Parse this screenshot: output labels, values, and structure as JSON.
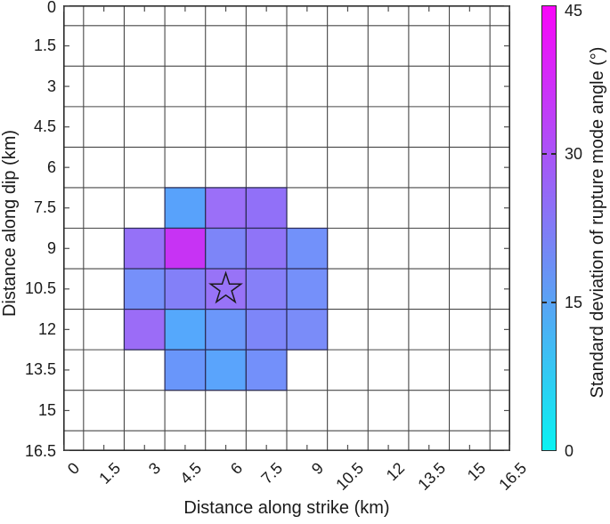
{
  "figure": {
    "background": "#ffffff"
  },
  "chart_data": {
    "type": "heatmap",
    "title": "",
    "xlabel": "Distance along strike (km)",
    "ylabel": "Distance along dip (km)",
    "x_ticks": [
      "0",
      "1.5",
      "3",
      "4.5",
      "6",
      "7.5",
      "9",
      "10.5",
      "12",
      "13.5",
      "15",
      "16.5"
    ],
    "y_ticks": [
      "0",
      "1.5",
      "3",
      "4.5",
      "6",
      "7.5",
      "9",
      "10.5",
      "12",
      "13.5",
      "15",
      "16.5"
    ],
    "x_range": [
      0,
      16.5
    ],
    "y_range": [
      0,
      16.5
    ],
    "y_axis_direction": "reversed (0 at top)",
    "cell_size_km": 1.5,
    "grid": "on",
    "grid_line_color": "#474747",
    "axis_box_color": "#2a2a2a",
    "cell_edge_color": "#2b2b55",
    "colorbar": {
      "label": "Standard deviation of rupture mode angle (°)",
      "tick_labels": [
        "0",
        "15",
        "30",
        "45"
      ],
      "range": [
        0,
        45
      ],
      "colormap": "cool",
      "bottom_color": "#0af2f2",
      "top_color": "#f905f9",
      "position": "right"
    },
    "star_marker": {
      "x": 6,
      "y": 10.5,
      "shape": "pentagram-outline",
      "outline_color": "#1a1a1a"
    },
    "cells": [
      {
        "x": 4.5,
        "y": 7.5,
        "color": "#58A2FB",
        "value": 16.0
      },
      {
        "x": 6,
        "y": 7.5,
        "color": "#9B6FF8",
        "value": 26.4
      },
      {
        "x": 7.5,
        "y": 7.5,
        "color": "#9170F8",
        "value": 25.4
      },
      {
        "x": 3,
        "y": 9,
        "color": "#9571F7",
        "value": 25.7
      },
      {
        "x": 4.5,
        "y": 9,
        "color": "#C733F4",
        "value": 35.6
      },
      {
        "x": 6,
        "y": 9,
        "color": "#7D85F8",
        "value": 21.8
      },
      {
        "x": 7.5,
        "y": 9,
        "color": "#8F74F7",
        "value": 24.9
      },
      {
        "x": 9,
        "y": 9,
        "color": "#7291FA",
        "value": 19.8
      },
      {
        "x": 3,
        "y": 10.5,
        "color": "#7690FA",
        "value": 20.2
      },
      {
        "x": 4.5,
        "y": 10.5,
        "color": "#8380F8",
        "value": 22.8
      },
      {
        "x": 6,
        "y": 10.5,
        "color": "#9873F7",
        "value": 25.7
      },
      {
        "x": 7.5,
        "y": 10.5,
        "color": "#8680F8",
        "value": 23.0
      },
      {
        "x": 9,
        "y": 10.5,
        "color": "#7590FA",
        "value": 20.1
      },
      {
        "x": 3,
        "y": 12,
        "color": "#9B6CF7",
        "value": 26.6
      },
      {
        "x": 4.5,
        "y": 12,
        "color": "#55A8FC",
        "value": 15.2
      },
      {
        "x": 6,
        "y": 12,
        "color": "#6B97FA",
        "value": 18.6
      },
      {
        "x": 7.5,
        "y": 12,
        "color": "#7D86F9",
        "value": 21.7
      },
      {
        "x": 9,
        "y": 12,
        "color": "#7A8CF9",
        "value": 20.9
      },
      {
        "x": 4.5,
        "y": 13.5,
        "color": "#6996FA",
        "value": 18.5
      },
      {
        "x": 6,
        "y": 13.5,
        "color": "#5AA4FC",
        "value": 16.0
      },
      {
        "x": 7.5,
        "y": 13.5,
        "color": "#7390FA",
        "value": 19.9
      }
    ]
  }
}
